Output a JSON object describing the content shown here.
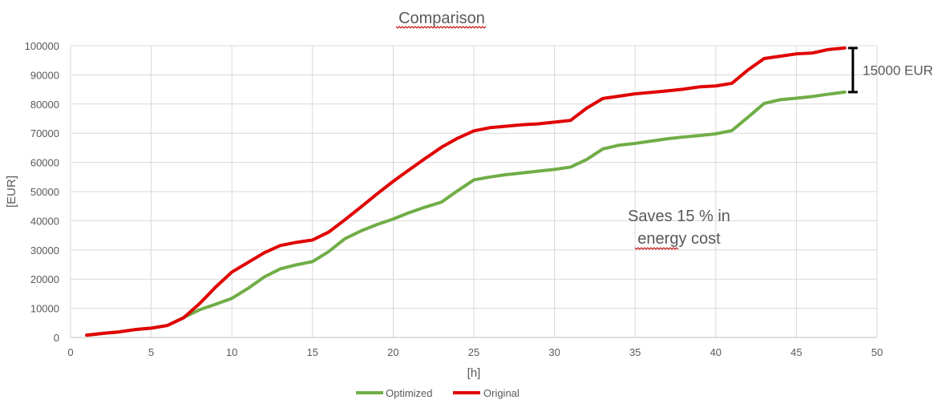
{
  "chart_data": {
    "type": "line",
    "title": "Comparison",
    "xlabel": "[h]",
    "ylabel": "[EUR]",
    "xlim": [
      0,
      50
    ],
    "ylim": [
      0,
      100000
    ],
    "x_ticks": [
      0,
      5,
      10,
      15,
      20,
      25,
      30,
      35,
      40,
      45,
      50
    ],
    "y_ticks": [
      0,
      10000,
      20000,
      30000,
      40000,
      50000,
      60000,
      70000,
      80000,
      90000,
      100000
    ],
    "grid": true,
    "legend_position": "bottom",
    "series": [
      {
        "name": "Optimized",
        "color": "#70ad47",
        "points": [
          [
            1,
            800
          ],
          [
            2,
            1400
          ],
          [
            3,
            1900
          ],
          [
            4,
            2700
          ],
          [
            5,
            3200
          ],
          [
            6,
            4100
          ],
          [
            7,
            6800
          ],
          [
            8,
            9500
          ],
          [
            9,
            11400
          ],
          [
            10,
            13400
          ],
          [
            11,
            16800
          ],
          [
            12,
            20700
          ],
          [
            13,
            23500
          ],
          [
            14,
            24900
          ],
          [
            15,
            26000
          ],
          [
            16,
            29400
          ],
          [
            17,
            33800
          ],
          [
            18,
            36500
          ],
          [
            19,
            38700
          ],
          [
            20,
            40600
          ],
          [
            21,
            42800
          ],
          [
            22,
            44700
          ],
          [
            23,
            46400
          ],
          [
            24,
            50300
          ],
          [
            25,
            54000
          ],
          [
            26,
            55000
          ],
          [
            27,
            55800
          ],
          [
            28,
            56400
          ],
          [
            29,
            57000
          ],
          [
            30,
            57600
          ],
          [
            31,
            58400
          ],
          [
            32,
            61000
          ],
          [
            33,
            64600
          ],
          [
            34,
            65900
          ],
          [
            35,
            66500
          ],
          [
            36,
            67300
          ],
          [
            37,
            68100
          ],
          [
            38,
            68700
          ],
          [
            39,
            69200
          ],
          [
            40,
            69800
          ],
          [
            41,
            70900
          ],
          [
            42,
            75500
          ],
          [
            43,
            80200
          ],
          [
            44,
            81500
          ],
          [
            45,
            82000
          ],
          [
            46,
            82600
          ],
          [
            47,
            83400
          ],
          [
            48,
            84100
          ]
        ]
      },
      {
        "name": "Original",
        "color": "#e00000",
        "points": [
          [
            1,
            800
          ],
          [
            2,
            1400
          ],
          [
            3,
            1900
          ],
          [
            4,
            2700
          ],
          [
            5,
            3200
          ],
          [
            6,
            4100
          ],
          [
            7,
            6700
          ],
          [
            8,
            11600
          ],
          [
            9,
            17300
          ],
          [
            10,
            22400
          ],
          [
            11,
            25700
          ],
          [
            12,
            29000
          ],
          [
            13,
            31500
          ],
          [
            14,
            32600
          ],
          [
            15,
            33400
          ],
          [
            16,
            36100
          ],
          [
            17,
            40300
          ],
          [
            18,
            44700
          ],
          [
            19,
            49200
          ],
          [
            20,
            53500
          ],
          [
            21,
            57500
          ],
          [
            22,
            61400
          ],
          [
            23,
            65200
          ],
          [
            24,
            68300
          ],
          [
            25,
            70800
          ],
          [
            26,
            71900
          ],
          [
            27,
            72400
          ],
          [
            28,
            72900
          ],
          [
            29,
            73200
          ],
          [
            30,
            73800
          ],
          [
            31,
            74400
          ],
          [
            32,
            78600
          ],
          [
            33,
            81900
          ],
          [
            34,
            82700
          ],
          [
            35,
            83500
          ],
          [
            36,
            84000
          ],
          [
            37,
            84500
          ],
          [
            38,
            85100
          ],
          [
            39,
            85900
          ],
          [
            40,
            86200
          ],
          [
            41,
            87100
          ],
          [
            42,
            91700
          ],
          [
            43,
            95600
          ],
          [
            44,
            96400
          ],
          [
            45,
            97200
          ],
          [
            46,
            97500
          ],
          [
            47,
            98700
          ],
          [
            48,
            99200
          ]
        ]
      }
    ],
    "annotations": {
      "difference_label": "15000 EUR",
      "difference_x": 48.5,
      "difference_y_low": 84100,
      "difference_y_high": 99200,
      "savings_line_1": "Saves 15 % in",
      "savings_line_2": "energy cost"
    }
  }
}
